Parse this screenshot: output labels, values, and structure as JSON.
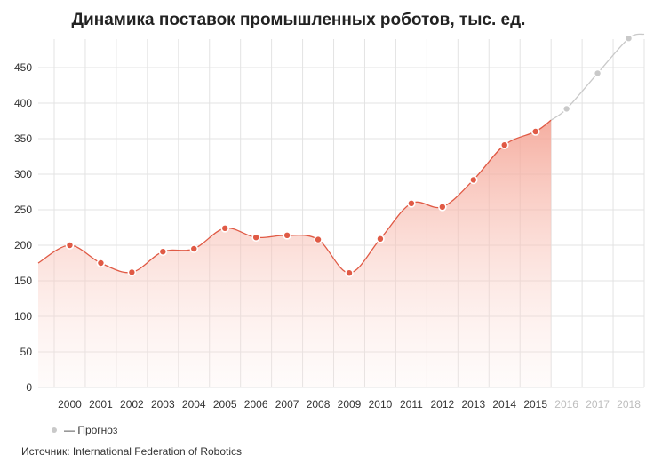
{
  "chart_data": {
    "type": "area",
    "title": "Динамика поставок промышленных роботов, тыс. ед.",
    "xlabel": "",
    "ylabel": "",
    "ylim": [
      0,
      500
    ],
    "yticks": [
      0,
      50,
      100,
      150,
      200,
      250,
      300,
      350,
      400,
      450
    ],
    "grid": true,
    "categories": [
      "2000",
      "2001",
      "2002",
      "2003",
      "2004",
      "2005",
      "2006",
      "2007",
      "2008",
      "2009",
      "2010",
      "2011",
      "2012",
      "2013",
      "2014",
      "2015",
      "2016",
      "2017",
      "2018"
    ],
    "series": [
      {
        "name": "",
        "x": [
          "2000",
          "2001",
          "2002",
          "2003",
          "2004",
          "2005",
          "2006",
          "2007",
          "2008",
          "2009",
          "2010",
          "2011",
          "2012",
          "2013",
          "2014",
          "2015"
        ],
        "values": [
          200,
          175,
          162,
          191,
          195,
          224,
          211,
          214,
          208,
          161,
          209,
          259,
          254,
          292,
          341,
          360
        ],
        "color": "#e05a45"
      },
      {
        "name": "Прогноз",
        "x": [
          "2016",
          "2017",
          "2018"
        ],
        "values": [
          392,
          442,
          491
        ],
        "color": "#c9c9c9"
      }
    ],
    "legend": {
      "position": "bottom-left",
      "label": "— Прогноз"
    },
    "source": "Источник: International Federation of Robotics"
  }
}
